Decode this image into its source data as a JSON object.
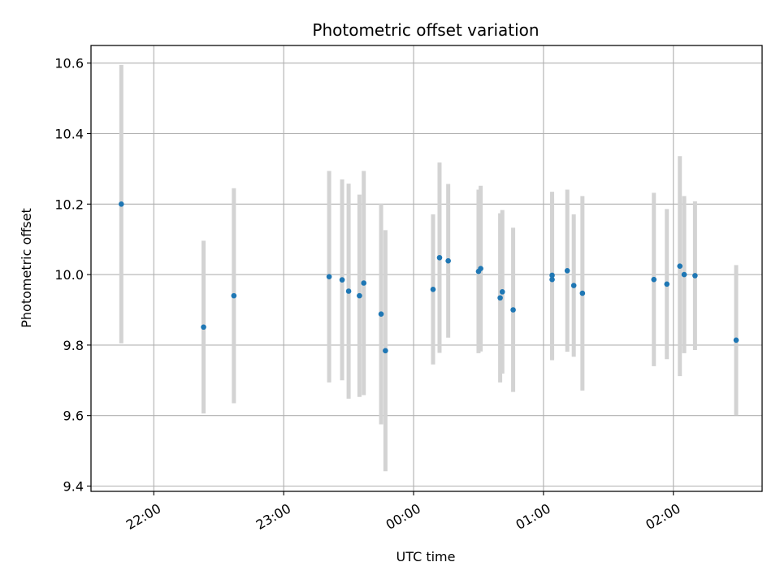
{
  "chart_data": {
    "type": "scatter",
    "title": "Photometric offset variation",
    "xlabel": "UTC time",
    "ylabel": "Photometric offset",
    "x_is_time": true,
    "xlim": [
      "21:31",
      "02:41"
    ],
    "ylim": [
      9.385,
      10.65
    ],
    "xticks": [
      "22:00",
      "23:00",
      "00:00",
      "01:00",
      "02:00"
    ],
    "yticks": [
      "9.4",
      "9.6",
      "9.8",
      "10.0",
      "10.2",
      "10.4",
      "10.6"
    ],
    "grid": true,
    "marker_color": "#1f77b4",
    "errorbar_color": "#d3d3d3",
    "points": [
      {
        "t": "21:45",
        "y": 10.2,
        "yerr": 0.395
      },
      {
        "t": "22:23",
        "y": 9.851,
        "yerr": 0.245
      },
      {
        "t": "22:37",
        "y": 9.94,
        "yerr": 0.305
      },
      {
        "t": "23:21",
        "y": 9.994,
        "yerr": 0.3
      },
      {
        "t": "23:27",
        "y": 9.985,
        "yerr": 0.285
      },
      {
        "t": "23:30",
        "y": 9.953,
        "yerr": 0.305
      },
      {
        "t": "23:35",
        "y": 9.94,
        "yerr": 0.287
      },
      {
        "t": "23:37",
        "y": 9.976,
        "yerr": 0.318
      },
      {
        "t": "23:45",
        "y": 9.888,
        "yerr": 0.313
      },
      {
        "t": "23:47",
        "y": 9.784,
        "yerr": 0.342
      },
      {
        "t": "00:09",
        "y": 9.958,
        "yerr": 0.213
      },
      {
        "t": "00:12",
        "y": 10.048,
        "yerr": 0.27
      },
      {
        "t": "00:16",
        "y": 10.039,
        "yerr": 0.218
      },
      {
        "t": "00:30",
        "y": 10.009,
        "yerr": 0.232
      },
      {
        "t": "00:31",
        "y": 10.017,
        "yerr": 0.235
      },
      {
        "t": "00:40",
        "y": 9.934,
        "yerr": 0.24
      },
      {
        "t": "00:41",
        "y": 9.951,
        "yerr": 0.232
      },
      {
        "t": "00:46",
        "y": 9.9,
        "yerr": 0.233
      },
      {
        "t": "01:04",
        "y": 9.986,
        "yerr": 0.229
      },
      {
        "t": "01:04",
        "y": 9.998,
        "yerr": 0.237
      },
      {
        "t": "01:11",
        "y": 10.011,
        "yerr": 0.23
      },
      {
        "t": "01:14",
        "y": 9.969,
        "yerr": 0.202
      },
      {
        "t": "01:18",
        "y": 9.947,
        "yerr": 0.276
      },
      {
        "t": "01:51",
        "y": 9.986,
        "yerr": 0.246
      },
      {
        "t": "01:57",
        "y": 9.973,
        "yerr": 0.213
      },
      {
        "t": "02:03",
        "y": 10.024,
        "yerr": 0.312
      },
      {
        "t": "02:05",
        "y": 10.0,
        "yerr": 0.223
      },
      {
        "t": "02:10",
        "y": 9.997,
        "yerr": 0.211
      },
      {
        "t": "02:29",
        "y": 9.814,
        "yerr": 0.213
      }
    ]
  }
}
